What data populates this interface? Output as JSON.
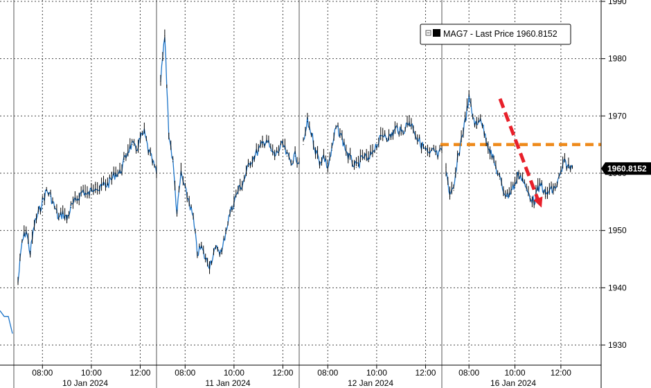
{
  "chart_data": {
    "type": "line",
    "title": "",
    "series": [
      {
        "name": "MAG7 - Last Price",
        "last_value": "1960.8152",
        "color": "#1a73c8",
        "sessions": [
          {
            "date": "10 Jan 2024",
            "x": [
              "07:00",
              "07:10",
              "07:20",
              "07:30",
              "07:40",
              "07:50",
              "08:00",
              "08:10",
              "08:20",
              "08:30",
              "08:40",
              "08:50",
              "09:00",
              "09:10",
              "09:20",
              "09:30",
              "09:40",
              "09:50",
              "10:00",
              "10:10",
              "10:20",
              "10:30",
              "10:40",
              "10:50",
              "11:00",
              "11:10",
              "11:20",
              "11:30",
              "11:40",
              "11:50",
              "12:00",
              "12:10",
              "12:20",
              "12:30",
              "12:40"
            ],
            "y": [
              1941,
              1948,
              1950,
              1946,
              1951,
              1953,
              1955,
              1957,
              1956,
              1954,
              1952,
              1953,
              1952,
              1954,
              1955,
              1956,
              1957,
              1956,
              1957,
              1958,
              1957,
              1958,
              1958,
              1959,
              1960,
              1960,
              1962,
              1964,
              1965,
              1964,
              1966,
              1967,
              1964,
              1962,
              1960
            ]
          },
          {
            "date": "11 Jan 2024",
            "x": [
              "07:00",
              "07:10",
              "07:20",
              "07:30",
              "07:40",
              "07:50",
              "08:00",
              "08:10",
              "08:20",
              "08:30",
              "08:40",
              "08:50",
              "09:00",
              "09:10",
              "09:20",
              "09:30",
              "09:40",
              "09:50",
              "10:00",
              "10:10",
              "10:20",
              "10:30",
              "10:40",
              "10:50",
              "11:00",
              "11:10",
              "11:20",
              "11:30",
              "11:40",
              "11:50",
              "12:00",
              "12:10",
              "12:20",
              "12:30",
              "12:40"
            ],
            "y": [
              1976,
              1984,
              1967,
              1962,
              1953,
              1960,
              1957,
              1955,
              1952,
              1946,
              1947,
              1945,
              1944,
              1946,
              1947,
              1946,
              1950,
              1953,
              1955,
              1957,
              1958,
              1960,
              1962,
              1963,
              1964,
              1965,
              1966,
              1964,
              1963,
              1964,
              1965,
              1963,
              1962,
              1963,
              1962
            ]
          },
          {
            "date": "12 Jan 2024",
            "x": [
              "07:00",
              "07:10",
              "07:20",
              "07:30",
              "07:40",
              "07:50",
              "08:00",
              "08:10",
              "08:20",
              "08:30",
              "08:40",
              "08:50",
              "09:00",
              "09:10",
              "09:20",
              "09:30",
              "09:40",
              "09:50",
              "10:00",
              "10:10",
              "10:20",
              "10:30",
              "10:40",
              "10:50",
              "11:00",
              "11:10",
              "11:20",
              "11:30",
              "11:40",
              "11:50",
              "12:00",
              "12:10",
              "12:20",
              "12:30",
              "12:40"
            ],
            "y": [
              1965,
              1969,
              1967,
              1964,
              1962,
              1963,
              1961,
              1964,
              1968,
              1967,
              1965,
              1963,
              1962,
              1961,
              1962,
              1963,
              1962,
              1964,
              1965,
              1966,
              1967,
              1966,
              1967,
              1968,
              1967,
              1968,
              1969,
              1968,
              1966,
              1965,
              1964,
              1963,
              1964,
              1963,
              1964
            ]
          },
          {
            "date": "16 Jan 2024",
            "x": [
              "07:00",
              "07:10",
              "07:20",
              "07:30",
              "07:40",
              "07:50",
              "08:00",
              "08:10",
              "08:20",
              "08:30",
              "08:40",
              "08:50",
              "09:00",
              "09:10",
              "09:20",
              "09:30",
              "09:40",
              "09:50",
              "10:00",
              "10:10",
              "10:20",
              "10:30",
              "10:40",
              "10:50",
              "11:00",
              "11:10",
              "11:20",
              "11:30",
              "11:40",
              "11:50",
              "12:00",
              "12:10",
              "12:20",
              "12:30"
            ],
            "y": [
              1961,
              1956,
              1957,
              1962,
              1966,
              1969,
              1973,
              1970,
              1968,
              1970,
              1967,
              1965,
              1963,
              1961,
              1959,
              1957,
              1956,
              1957,
              1958,
              1960,
              1959,
              1957,
              1956,
              1955,
              1957,
              1958,
              1956,
              1957,
              1957,
              1958,
              1960,
              1962,
              1961,
              1961
            ]
          }
        ]
      }
    ],
    "pre_segment": {
      "y": [
        1936,
        1935,
        1935,
        1932
      ]
    },
    "ylim": [
      1925,
      1990
    ],
    "yticks": [
      "1930",
      "1940",
      "1950",
      "1960",
      "1970",
      "1980",
      "1990"
    ],
    "xticks": [
      "08:00",
      "10:00",
      "12:00",
      "08:00",
      "10:00",
      "12:00",
      "08:00",
      "10:00",
      "12:00",
      "08:00",
      "10:00",
      "12:00"
    ],
    "date_labels": [
      "10 Jan 2024",
      "11 Jan 2024",
      "12 Jan 2024",
      "16 Jan 2024"
    ],
    "hline": {
      "value": 1965,
      "color": "#ee8a1b"
    },
    "arrow": {
      "from_value": 1973,
      "to_value": 1954,
      "color": "#e8202a"
    },
    "grid": true,
    "legend": {
      "label": "MAG7 - Last Price",
      "value": "1960.8152",
      "placement": "top-right"
    },
    "last_price_label": "1960.8152"
  }
}
